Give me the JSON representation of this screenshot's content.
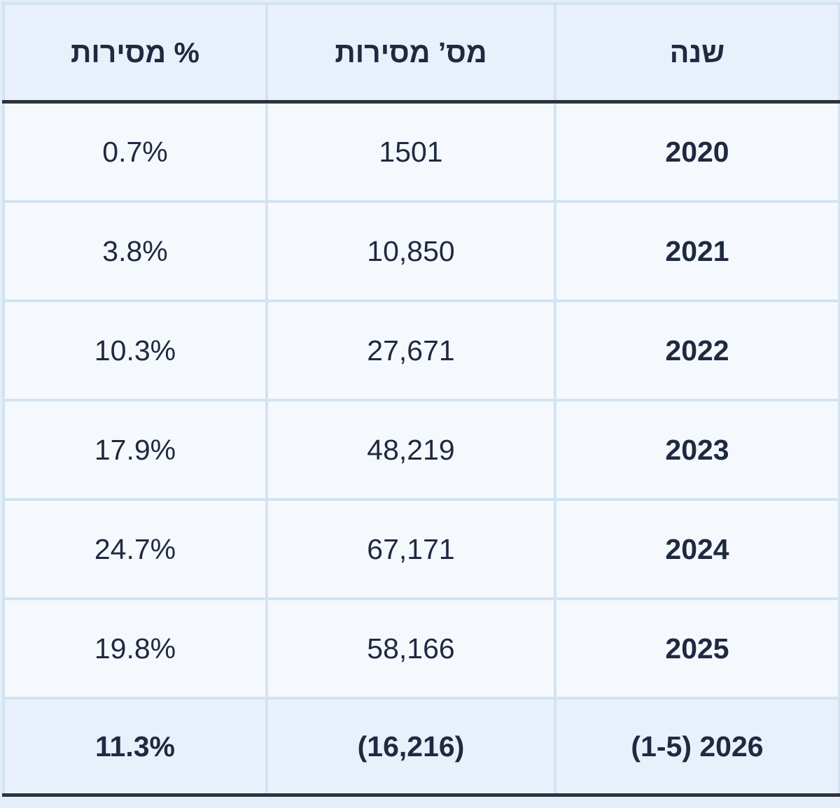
{
  "table": {
    "header": [
      "שנה",
      "מס’ מסירות",
      "% מסירות"
    ],
    "rows": [
      [
        "2020",
        "1501",
        "0.7%"
      ],
      [
        "2021",
        "10,850",
        "3.8%"
      ],
      [
        "2022",
        "27,671",
        "10.3%"
      ],
      [
        "2023",
        "48,219",
        "17.9%"
      ],
      [
        "2024",
        "67,171",
        "24.7%"
      ],
      [
        "2025",
        "58,166",
        "19.8%"
      ]
    ],
    "footer": [
      "2026 (1-5)",
      "(16,216)",
      "11.3%"
    ]
  }
}
